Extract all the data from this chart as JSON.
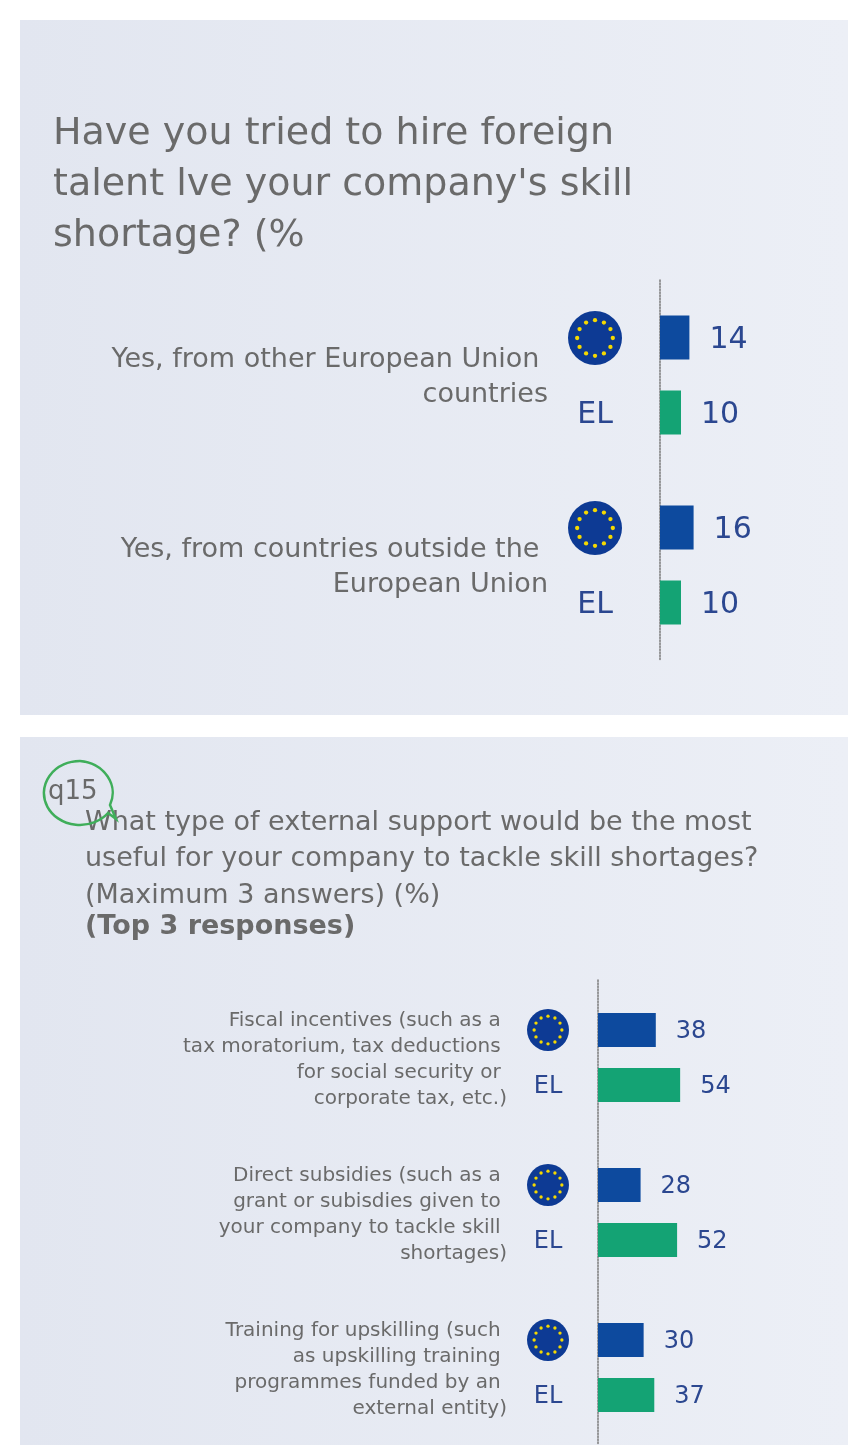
{
  "chart_data": [
    {
      "type": "bar",
      "orientation": "horizontal",
      "title": "Have you tried to hire foreign talent lve your company's skill shortage? (%",
      "categories": [
        "Yes, from other European Union countries",
        "Yes, from countries outside the European Union"
      ],
      "series": [
        {
          "color": "#0d4a9e",
          "values": [
            14,
            16
          ]
        },
        {
          "name": "EL",
          "color": "#14a374",
          "values": [
            10,
            10
          ]
        }
      ],
      "data_labels": true,
      "tick_labels": "y",
      "grid": false,
      "legend": false
    },
    {
      "type": "bar",
      "orientation": "horizontal",
      "title": "What type of external support would be the most useful for your company to tackle skill shortages? (Maximum 3 answers) (%)",
      "subtitle": "(Top 3 responses)",
      "annotations": [
        "q15"
      ],
      "categories": [
        "Fiscal incentives (such as a tax moratorium, tax deductions for social security or corporate tax, etc.)",
        "Direct subsidies (such as a grant or subisdies given to your company to tackle skill shortages)",
        "Training for upskilling (such as upskilling training programmes funded by an external entity)"
      ],
      "series": [
        {
          "color": "#0d4a9e",
          "values": [
            38,
            28,
            30
          ]
        },
        {
          "name": "EL",
          "color": "#14a374",
          "values": [
            54,
            52,
            37
          ]
        }
      ],
      "data_labels": true,
      "tick_labels": "y",
      "grid": false,
      "legend": false
    }
  ]
}
